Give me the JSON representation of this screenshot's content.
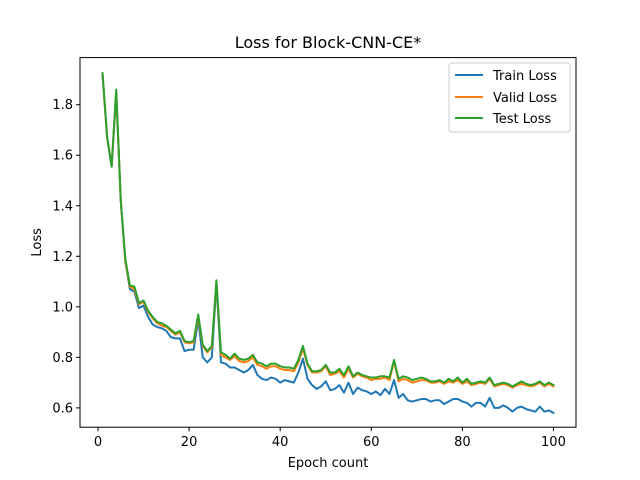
{
  "chart_data": {
    "type": "line",
    "title": "Loss for Block-CNN-CE*",
    "xlabel": "Epoch count",
    "ylabel": "Loss",
    "xlim": [
      -3.95,
      104.95
    ],
    "ylim": [
      0.5235,
      1.9865
    ],
    "xticks": [
      0,
      20,
      40,
      60,
      80,
      100
    ],
    "yticks": [
      0.6,
      0.8,
      1.0,
      1.2,
      1.4,
      1.6,
      1.8
    ],
    "ytick_labels": [
      "0.6",
      "0.8",
      "1.0",
      "1.2",
      "1.4",
      "1.6",
      "1.8"
    ],
    "grid": false,
    "legend_position": "top-right",
    "x": [
      1,
      2,
      3,
      4,
      5,
      6,
      7,
      8,
      9,
      10,
      11,
      12,
      13,
      14,
      15,
      16,
      17,
      18,
      19,
      20,
      21,
      22,
      23,
      24,
      25,
      26,
      27,
      28,
      29,
      30,
      31,
      32,
      33,
      34,
      35,
      36,
      37,
      38,
      39,
      40,
      41,
      42,
      43,
      44,
      45,
      46,
      47,
      48,
      49,
      50,
      51,
      52,
      53,
      54,
      55,
      56,
      57,
      58,
      59,
      60,
      61,
      62,
      63,
      64,
      65,
      66,
      67,
      68,
      69,
      70,
      71,
      72,
      73,
      74,
      75,
      76,
      77,
      78,
      79,
      80,
      81,
      82,
      83,
      84,
      85,
      86,
      87,
      88,
      89,
      90,
      91,
      92,
      93,
      94,
      95,
      96,
      97,
      98,
      99,
      100
    ],
    "series": [
      {
        "name": "Train Loss",
        "color": "#1f77b4",
        "values": [
          1.92,
          1.67,
          1.555,
          1.85,
          1.42,
          1.18,
          1.07,
          1.06,
          0.995,
          1.005,
          0.96,
          0.93,
          0.92,
          0.915,
          0.905,
          0.88,
          0.875,
          0.875,
          0.825,
          0.83,
          0.83,
          0.95,
          0.8,
          0.78,
          0.8,
          1.095,
          0.78,
          0.775,
          0.76,
          0.76,
          0.75,
          0.74,
          0.75,
          0.77,
          0.73,
          0.715,
          0.71,
          0.72,
          0.715,
          0.7,
          0.71,
          0.705,
          0.7,
          0.74,
          0.795,
          0.715,
          0.69,
          0.675,
          0.685,
          0.705,
          0.67,
          0.675,
          0.69,
          0.66,
          0.7,
          0.655,
          0.68,
          0.67,
          0.665,
          0.655,
          0.665,
          0.65,
          0.675,
          0.655,
          0.71,
          0.64,
          0.655,
          0.63,
          0.625,
          0.63,
          0.635,
          0.635,
          0.625,
          0.63,
          0.63,
          0.615,
          0.625,
          0.635,
          0.635,
          0.625,
          0.62,
          0.605,
          0.62,
          0.62,
          0.605,
          0.64,
          0.6,
          0.6,
          0.61,
          0.6,
          0.585,
          0.6,
          0.605,
          0.595,
          0.59,
          0.585,
          0.605,
          0.585,
          0.59,
          0.58
        ]
      },
      {
        "name": "Valid Loss",
        "color": "#ff7f0e",
        "values": [
          1.92,
          1.67,
          1.56,
          1.85,
          1.42,
          1.18,
          1.08,
          1.07,
          1.01,
          1.02,
          0.98,
          0.955,
          0.935,
          0.925,
          0.92,
          0.905,
          0.89,
          0.9,
          0.86,
          0.855,
          0.86,
          0.96,
          0.845,
          0.82,
          0.84,
          1.1,
          0.81,
          0.8,
          0.79,
          0.805,
          0.785,
          0.78,
          0.785,
          0.8,
          0.77,
          0.765,
          0.755,
          0.765,
          0.765,
          0.755,
          0.75,
          0.75,
          0.745,
          0.78,
          0.835,
          0.77,
          0.74,
          0.74,
          0.745,
          0.765,
          0.73,
          0.735,
          0.745,
          0.72,
          0.755,
          0.72,
          0.735,
          0.725,
          0.72,
          0.71,
          0.715,
          0.715,
          0.72,
          0.71,
          0.785,
          0.705,
          0.715,
          0.71,
          0.7,
          0.705,
          0.71,
          0.71,
          0.7,
          0.7,
          0.705,
          0.695,
          0.705,
          0.7,
          0.71,
          0.695,
          0.705,
          0.69,
          0.695,
          0.7,
          0.695,
          0.715,
          0.685,
          0.69,
          0.695,
          0.69,
          0.68,
          0.69,
          0.695,
          0.69,
          0.685,
          0.69,
          0.7,
          0.685,
          0.695,
          0.685
        ]
      },
      {
        "name": "Test Loss",
        "color": "#2ca02c",
        "values": [
          1.925,
          1.675,
          1.555,
          1.86,
          1.42,
          1.19,
          1.085,
          1.08,
          1.015,
          1.025,
          0.985,
          0.96,
          0.94,
          0.935,
          0.925,
          0.91,
          0.895,
          0.905,
          0.865,
          0.86,
          0.865,
          0.97,
          0.85,
          0.825,
          0.845,
          1.105,
          0.82,
          0.81,
          0.795,
          0.815,
          0.795,
          0.79,
          0.795,
          0.81,
          0.78,
          0.775,
          0.765,
          0.775,
          0.775,
          0.765,
          0.76,
          0.76,
          0.755,
          0.79,
          0.845,
          0.775,
          0.745,
          0.745,
          0.75,
          0.77,
          0.74,
          0.74,
          0.755,
          0.73,
          0.765,
          0.725,
          0.74,
          0.73,
          0.725,
          0.72,
          0.72,
          0.725,
          0.725,
          0.72,
          0.79,
          0.715,
          0.725,
          0.72,
          0.71,
          0.715,
          0.72,
          0.715,
          0.705,
          0.705,
          0.71,
          0.7,
          0.715,
          0.705,
          0.72,
          0.7,
          0.715,
          0.695,
          0.7,
          0.705,
          0.7,
          0.72,
          0.69,
          0.695,
          0.7,
          0.695,
          0.685,
          0.695,
          0.705,
          0.695,
          0.69,
          0.695,
          0.705,
          0.69,
          0.7,
          0.69
        ]
      }
    ]
  }
}
